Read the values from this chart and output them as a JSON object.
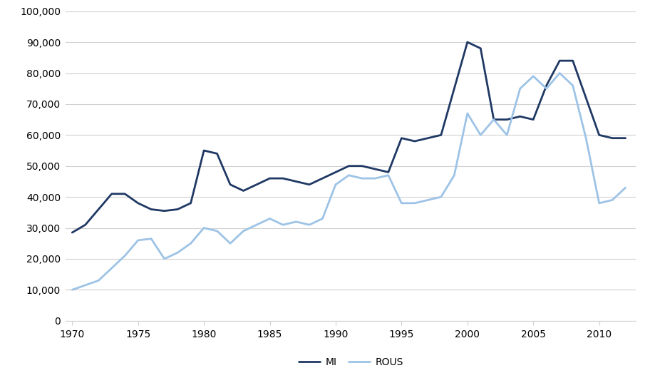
{
  "years": [
    1970,
    1971,
    1972,
    1973,
    1974,
    1975,
    1976,
    1977,
    1978,
    1979,
    1980,
    1981,
    1982,
    1983,
    1984,
    1985,
    1986,
    1987,
    1988,
    1989,
    1990,
    1991,
    1992,
    1993,
    1994,
    1995,
    1996,
    1997,
    1998,
    1999,
    2000,
    2001,
    2002,
    2003,
    2004,
    2005,
    2006,
    2007,
    2008,
    2009,
    2010,
    2011,
    2012
  ],
  "MI": [
    28500,
    31000,
    36000,
    41000,
    41000,
    38000,
    36000,
    35500,
    36000,
    38000,
    55000,
    54000,
    44000,
    42000,
    44000,
    46000,
    46000,
    45000,
    44000,
    46000,
    48000,
    50000,
    50000,
    49000,
    48000,
    59000,
    58000,
    59000,
    60000,
    75000,
    90000,
    88000,
    65000,
    65000,
    66000,
    65000,
    76000,
    84000,
    84000,
    72000,
    60000,
    59000,
    59000
  ],
  "ROUS": [
    10000,
    11500,
    13000,
    17000,
    21000,
    26000,
    26500,
    20000,
    22000,
    25000,
    30000,
    29000,
    25000,
    29000,
    31000,
    33000,
    31000,
    32000,
    31000,
    33000,
    44000,
    47000,
    46000,
    46000,
    47000,
    38000,
    38000,
    39000,
    40000,
    47000,
    67000,
    60000,
    65000,
    60000,
    75000,
    79000,
    75000,
    80000,
    76000,
    59000,
    38000,
    39000,
    43000
  ],
  "MI_color": "#1F3864",
  "ROUS_color": "#9DC3E6",
  "MI_label": "MI",
  "ROUS_label": "ROUS",
  "ylim": [
    0,
    100000
  ],
  "yticks": [
    0,
    10000,
    20000,
    30000,
    40000,
    50000,
    60000,
    70000,
    80000,
    90000,
    100000
  ],
  "xticks": [
    1970,
    1975,
    1980,
    1985,
    1990,
    1995,
    2000,
    2005,
    2010
  ],
  "xlim_min": 1969.5,
  "xlim_max": 2012.8,
  "background_color": "#ffffff",
  "grid_color": "#D0D0D0",
  "line_width": 2.0,
  "legend_fontsize": 10,
  "tick_fontsize": 10
}
